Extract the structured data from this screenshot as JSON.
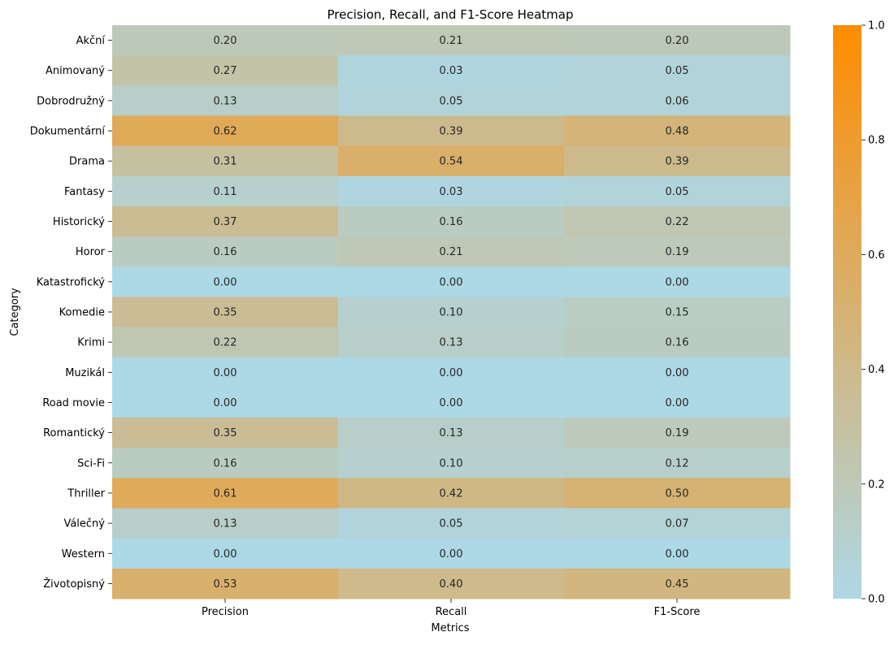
{
  "chart_data": {
    "type": "heatmap",
    "title": "Precision, Recall, and F1-Score Heatmap",
    "xlabel": "Metrics",
    "ylabel": "Category",
    "columns": [
      "Precision",
      "Recall",
      "F1-Score"
    ],
    "rows": [
      "Akční",
      "Animovaný",
      "Dobrodružný",
      "Dokumentární",
      "Drama",
      "Fantasy",
      "Historický",
      "Horor",
      "Katastrofický",
      "Komedie",
      "Krimi",
      "Muzikál",
      "Road movie",
      "Romantický",
      "Sci-Fi",
      "Thriller",
      "Válečný",
      "Western",
      "Životopisný"
    ],
    "values": [
      [
        0.2,
        0.21,
        0.2
      ],
      [
        0.27,
        0.03,
        0.05
      ],
      [
        0.13,
        0.05,
        0.06
      ],
      [
        0.62,
        0.39,
        0.48
      ],
      [
        0.31,
        0.54,
        0.39
      ],
      [
        0.11,
        0.03,
        0.05
      ],
      [
        0.37,
        0.16,
        0.22
      ],
      [
        0.16,
        0.21,
        0.19
      ],
      [
        0.0,
        0.0,
        0.0
      ],
      [
        0.35,
        0.1,
        0.15
      ],
      [
        0.22,
        0.13,
        0.16
      ],
      [
        0.0,
        0.0,
        0.0
      ],
      [
        0.0,
        0.0,
        0.0
      ],
      [
        0.35,
        0.13,
        0.19
      ],
      [
        0.16,
        0.1,
        0.12
      ],
      [
        0.61,
        0.42,
        0.5
      ],
      [
        0.13,
        0.05,
        0.07
      ],
      [
        0.0,
        0.0,
        0.0
      ],
      [
        0.53,
        0.4,
        0.45
      ]
    ],
    "value_format": "2 decimals",
    "colorbar": {
      "range": [
        0.0,
        1.0
      ],
      "ticks": [
        "0.0",
        "0.2",
        "0.4",
        "0.6",
        "0.8",
        "1.0"
      ],
      "color_low": "#add8e6",
      "color_high": "#ff8c00"
    },
    "grid": false,
    "legend": "colorbar-right"
  }
}
